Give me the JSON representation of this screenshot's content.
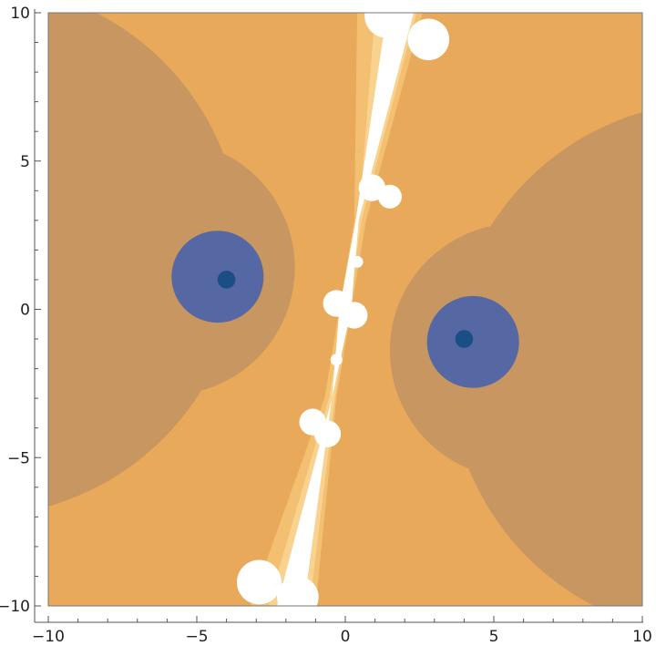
{
  "chart_data": {
    "type": "contour",
    "title": "",
    "xlabel": "",
    "ylabel": "",
    "xlim": [
      -10,
      10
    ],
    "ylim": [
      -10,
      10
    ],
    "grid": false,
    "frame": true,
    "x_ticks": [
      -10,
      -5,
      0,
      5,
      10
    ],
    "y_ticks": [
      -10,
      -5,
      0,
      5,
      10
    ],
    "x_tick_labels": [
      "−10",
      "−5",
      "0",
      "5",
      "10"
    ],
    "y_tick_labels": [
      "−10",
      "−5",
      "0",
      "5",
      "10"
    ],
    "background_color": "#e8a95a",
    "level_colors": [
      "#1c4e86",
      "#5568a3",
      "#8c807a",
      "#c89660",
      "#e8a95a",
      "#f3bf70",
      "#f8d28e",
      "#ffffff"
    ],
    "minima": [
      {
        "x": -4,
        "y": 1,
        "contours": [
          {
            "cx": -6.0,
            "cy": 1.4,
            "r": 4.3,
            "level": 3
          },
          {
            "cx": -4.3,
            "cy": 1.1,
            "r": 1.55,
            "level": 1
          },
          {
            "cx": -4.0,
            "cy": 1.0,
            "r": 0.3,
            "level": 0
          }
        ]
      },
      {
        "x": 4,
        "y": -1,
        "contours": [
          {
            "cx": 5.8,
            "cy": -1.4,
            "r": 4.3,
            "level": 3
          },
          {
            "cx": 4.3,
            "cy": -1.1,
            "r": 1.55,
            "level": 1
          },
          {
            "cx": 4.0,
            "cy": -1.0,
            "r": 0.3,
            "level": 0
          }
        ]
      }
    ],
    "outer_contours": [
      {
        "cx": -12.5,
        "cy": 2.0,
        "r": 9.0,
        "level": 3
      },
      {
        "cx": 12.5,
        "cy": -2.0,
        "r": 9.0,
        "level": 3
      }
    ],
    "ridge_bands": [
      {
        "level": 5,
        "points": [
          [
            0.4,
            10
          ],
          [
            2.6,
            10
          ],
          [
            0.7,
            3
          ],
          [
            -0.3,
            -3
          ],
          [
            -1.0,
            -10
          ],
          [
            -3.2,
            -10
          ],
          [
            -0.7,
            -3
          ],
          [
            0.3,
            3
          ]
        ]
      },
      {
        "level": 6,
        "points": [
          [
            1.0,
            10
          ],
          [
            2.4,
            10
          ],
          [
            0.55,
            3
          ],
          [
            -0.35,
            -3
          ],
          [
            -1.2,
            -10
          ],
          [
            -2.6,
            -10
          ],
          [
            -0.55,
            -3
          ],
          [
            0.45,
            3
          ]
        ]
      },
      {
        "level": 7,
        "points": [
          [
            1.4,
            10
          ],
          [
            2.3,
            10
          ],
          [
            0.45,
            3
          ],
          [
            0.2,
            0
          ],
          [
            -0.45,
            -3
          ],
          [
            -1.4,
            -10
          ],
          [
            -2.3,
            -10
          ],
          [
            -0.45,
            -3
          ],
          [
            -0.2,
            0
          ],
          [
            0.35,
            3
          ]
        ]
      }
    ],
    "ridge_blobs": [
      {
        "x": 1.4,
        "y": 9.9,
        "r": 0.75
      },
      {
        "x": 2.8,
        "y": 9.1,
        "r": 0.7
      },
      {
        "x": 0.9,
        "y": 4.1,
        "r": 0.45
      },
      {
        "x": 1.5,
        "y": 3.8,
        "r": 0.4
      },
      {
        "x": 0.4,
        "y": 1.6,
        "r": 0.2
      },
      {
        "x": -0.3,
        "y": 0.2,
        "r": 0.45
      },
      {
        "x": 0.3,
        "y": -0.2,
        "r": 0.45
      },
      {
        "x": -0.3,
        "y": -1.7,
        "r": 0.2
      },
      {
        "x": -1.1,
        "y": -3.8,
        "r": 0.45
      },
      {
        "x": -0.6,
        "y": -4.2,
        "r": 0.45
      },
      {
        "x": -2.9,
        "y": -9.2,
        "r": 0.75
      },
      {
        "x": -1.6,
        "y": -9.7,
        "r": 0.7
      }
    ]
  }
}
